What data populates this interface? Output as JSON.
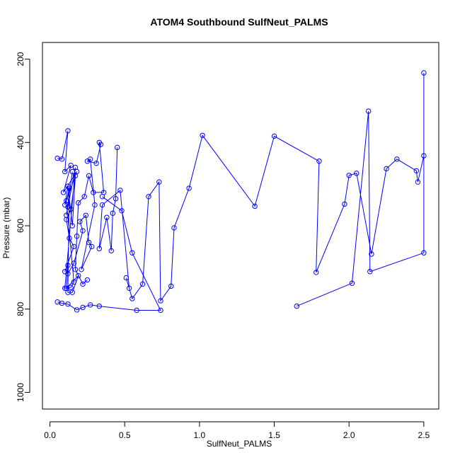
{
  "chart_data": {
    "type": "line",
    "title": "ATOM4 Southbound SulfNeut_PALMS",
    "xlabel": "SulfNeut_PALMS",
    "ylabel": "Pressure (mbar)",
    "xlim": [
      -0.05,
      2.6
    ],
    "ylim": [
      1040,
      160
    ],
    "y_axis_inverted": true,
    "x_ticks": [
      0.0,
      0.5,
      1.0,
      1.5,
      2.0,
      2.5
    ],
    "x_tick_labels": [
      "0.0",
      "0.5",
      "1.0",
      "1.5",
      "2.0",
      "2.5"
    ],
    "y_ticks": [
      200,
      400,
      600,
      800,
      1000
    ],
    "y_tick_labels": [
      "200",
      "400",
      "600",
      "800",
      "1000"
    ],
    "grid": false,
    "legend": "none",
    "line_color": "#0000ff",
    "marker": "open-circle",
    "series": [
      {
        "x": [
          0.05,
          0.08,
          0.12,
          0.1,
          0.14,
          0.09,
          0.18,
          0.1,
          0.12,
          0.15,
          0.17,
          0.14,
          0.11,
          0.13,
          0.16,
          0.1,
          0.12,
          0.11,
          0.19,
          0.15,
          0.12,
          0.13,
          0.11,
          0.16,
          0.14,
          0.1,
          0.17,
          0.12,
          0.11,
          0.15
        ],
        "y": [
          438,
          440,
          372,
          470,
          455,
          520,
          470,
          550,
          505,
          600,
          480,
          560,
          585,
          630,
          650,
          710,
          695,
          750,
          720,
          760,
          760,
          510,
          540,
          735,
          748,
          750,
          460,
          555,
          575,
          470
        ]
      },
      {
        "x": [
          0.12,
          0.16,
          0.22,
          0.2,
          0.24,
          0.26,
          0.28,
          0.21,
          0.3,
          0.27,
          0.25,
          0.31,
          0.34,
          0.33,
          0.36,
          0.29,
          0.26,
          0.23,
          0.19,
          0.18,
          0.17,
          0.22,
          0.25
        ],
        "y": [
          715,
          690,
          612,
          590,
          575,
          640,
          650,
          705,
          550,
          440,
          445,
          450,
          405,
          400,
          520,
          520,
          480,
          530,
          545,
          625,
          705,
          740,
          730
        ]
      },
      {
        "x": [
          0.45,
          0.44,
          0.42,
          0.41,
          0.38,
          0.33,
          0.35,
          0.47,
          0.53,
          0.51,
          0.55,
          0.62,
          0.66,
          0.73,
          0.74,
          0.81,
          0.83,
          0.93,
          1.02,
          1.37,
          1.5,
          1.8,
          1.78,
          1.97,
          2.0,
          2.05,
          2.15,
          2.25,
          2.32,
          2.45,
          2.46,
          2.5,
          2.5,
          2.5,
          2.14,
          2.13,
          2.02,
          1.65
        ],
        "y": [
          412,
          535,
          570,
          660,
          580,
          655,
          550,
          515,
          750,
          725,
          775,
          740,
          530,
          495,
          780,
          745,
          605,
          510,
          383,
          553,
          385,
          445,
          712,
          548,
          479,
          474,
          668,
          463,
          440,
          468,
          495,
          432,
          233,
          665,
          710,
          325,
          738,
          793
        ]
      },
      {
        "x": [
          0.05,
          0.08,
          0.12,
          0.18,
          0.22,
          0.27,
          0.33,
          0.58,
          0.74,
          0.55,
          0.48,
          0.35
        ],
        "y": [
          783,
          786,
          788,
          802,
          796,
          790,
          793,
          803,
          803,
          665,
          564,
          530
        ]
      }
    ]
  }
}
